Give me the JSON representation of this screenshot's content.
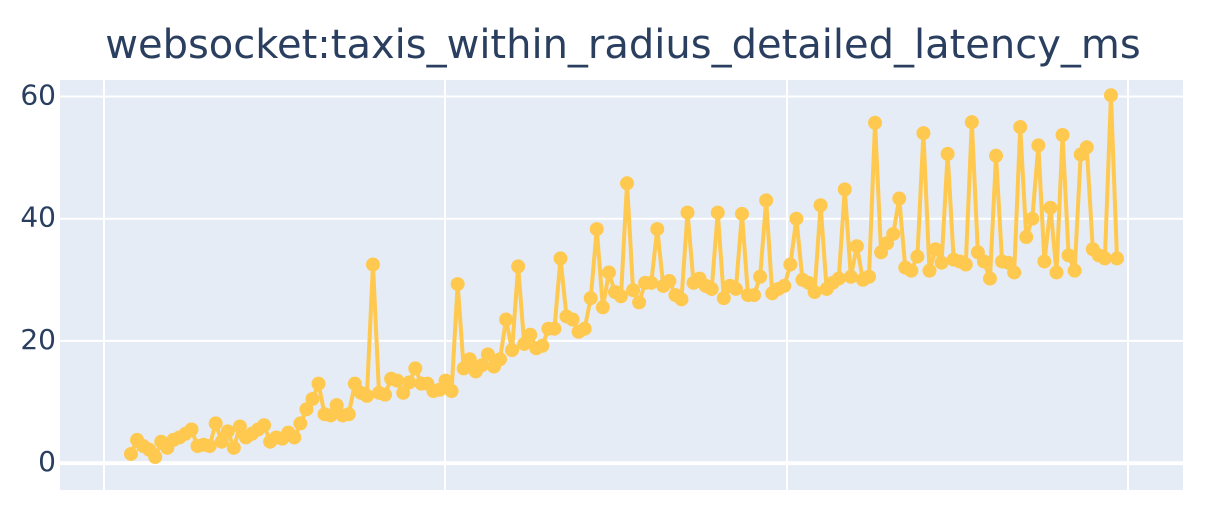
{
  "chart_data": {
    "type": "line",
    "title": "websocket:taxis_within_radius_detailed_latency_ms",
    "color": "#ffc84f",
    "grid": true,
    "markers": true,
    "ylim": [
      -4.4,
      62.7
    ],
    "yticks": [
      0,
      20,
      40,
      60
    ],
    "values": [
      1.5,
      3.8,
      2.8,
      2.2,
      1.0,
      3.5,
      2.5,
      3.8,
      4.2,
      4.8,
      5.5,
      2.8,
      3.0,
      2.8,
      6.5,
      3.5,
      5.2,
      2.5,
      6.0,
      4.2,
      4.8,
      5.5,
      6.2,
      3.5,
      4.2,
      4.0,
      5.0,
      4.2,
      6.5,
      8.8,
      10.5,
      13.0,
      8.0,
      7.8,
      9.5,
      7.8,
      8.0,
      13.0,
      11.5,
      11.0,
      32.5,
      11.5,
      11.2,
      13.8,
      13.5,
      11.5,
      13.2,
      15.5,
      13.0,
      13.0,
      11.8,
      12.0,
      13.5,
      11.8,
      29.3,
      15.5,
      17.0,
      15.0,
      16.0,
      17.8,
      15.8,
      17.0,
      23.5,
      18.5,
      32.2,
      19.5,
      21.0,
      18.8,
      19.2,
      22.0,
      22.0,
      33.5,
      24.0,
      23.5,
      21.5,
      22.0,
      27.0,
      38.3,
      25.5,
      31.2,
      28.0,
      27.3,
      45.8,
      28.3,
      26.3,
      29.5,
      29.5,
      38.3,
      29.0,
      29.8,
      27.5,
      26.8,
      41.0,
      29.5,
      30.2,
      29.0,
      28.5,
      41.0,
      27.0,
      29.0,
      28.5,
      40.8,
      27.5,
      27.5,
      30.5,
      43.0,
      27.8,
      28.5,
      29.0,
      32.5,
      40.0,
      30.0,
      29.5,
      28.0,
      42.2,
      28.5,
      29.5,
      30.2,
      44.8,
      30.5,
      35.5,
      30.0,
      30.5,
      55.7,
      34.5,
      36.0,
      37.5,
      43.3,
      32.0,
      31.5,
      33.8,
      54.0,
      31.5,
      35.0,
      32.8,
      50.6,
      33.3,
      33.0,
      32.5,
      55.8,
      34.5,
      33.0,
      30.2,
      50.3,
      33.0,
      32.8,
      31.2,
      55.0,
      37.0,
      40.0,
      52.0,
      33.0,
      41.8,
      31.2,
      53.7,
      34.0,
      31.5,
      50.5,
      51.7,
      35.0,
      34.0,
      33.5,
      60.2,
      33.5
    ]
  }
}
